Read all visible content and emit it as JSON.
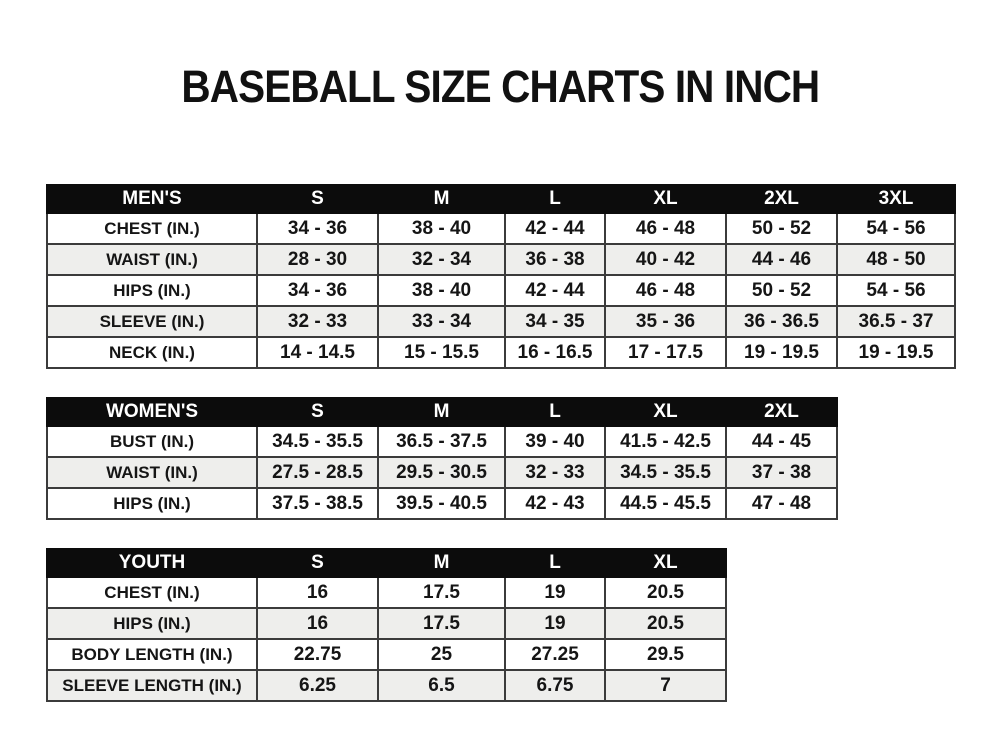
{
  "page": {
    "title": "BASEBALL SIZE CHARTS IN INCH"
  },
  "colors": {
    "header_bg": "#0c0c0c",
    "header_text": "#ffffff",
    "row_alt_bg": "#eeeeec",
    "border": "#3b3b3b",
    "text": "#151515"
  },
  "tables": [
    {
      "id": "mens",
      "header": [
        "MEN'S",
        "S",
        "M",
        "L",
        "XL",
        "2XL",
        "3XL"
      ],
      "rows": [
        {
          "label": "CHEST (IN.)",
          "values": [
            "34 - 36",
            "38 - 40",
            "42 - 44",
            "46 - 48",
            "50 - 52",
            "54 - 56"
          ]
        },
        {
          "label": "WAIST (IN.)",
          "values": [
            "28 - 30",
            "32 - 34",
            "36 - 38",
            "40 - 42",
            "44 - 46",
            "48 - 50"
          ]
        },
        {
          "label": "HIPS (IN.)",
          "values": [
            "34 - 36",
            "38 - 40",
            "42 - 44",
            "46 - 48",
            "50 - 52",
            "54 - 56"
          ]
        },
        {
          "label": "SLEEVE (IN.)",
          "values": [
            "32 - 33",
            "33 - 34",
            "34 - 35",
            "35 - 36",
            "36 - 36.5",
            "36.5 - 37"
          ]
        },
        {
          "label": "NECK (IN.)",
          "values": [
            "14 - 14.5",
            "15 - 15.5",
            "16 - 16.5",
            "17 - 17.5",
            "19 - 19.5",
            "19 - 19.5"
          ]
        }
      ]
    },
    {
      "id": "womens",
      "header": [
        "WOMEN'S",
        "S",
        "M",
        "L",
        "XL",
        "2XL"
      ],
      "rows": [
        {
          "label": "BUST (IN.)",
          "values": [
            "34.5 - 35.5",
            "36.5 - 37.5",
            "39 - 40",
            "41.5 - 42.5",
            "44 - 45"
          ]
        },
        {
          "label": "WAIST (IN.)",
          "values": [
            "27.5 - 28.5",
            "29.5 - 30.5",
            "32 - 33",
            "34.5 - 35.5",
            "37 - 38"
          ]
        },
        {
          "label": "HIPS (IN.)",
          "values": [
            "37.5 - 38.5",
            "39.5 - 40.5",
            "42 - 43",
            "44.5 - 45.5",
            "47 - 48"
          ]
        }
      ]
    },
    {
      "id": "youth",
      "header": [
        "YOUTH",
        "S",
        "M",
        "L",
        "XL"
      ],
      "rows": [
        {
          "label": "CHEST (IN.)",
          "values": [
            "16",
            "17.5",
            "19",
            "20.5"
          ]
        },
        {
          "label": "HIPS (IN.)",
          "values": [
            "16",
            "17.5",
            "19",
            "20.5"
          ]
        },
        {
          "label": "BODY LENGTH (IN.)",
          "values": [
            "22.75",
            "25",
            "27.25",
            "29.5"
          ]
        },
        {
          "label": "SLEEVE LENGTH (IN.)",
          "values": [
            "6.25",
            "6.5",
            "6.75",
            "7"
          ]
        }
      ]
    }
  ]
}
